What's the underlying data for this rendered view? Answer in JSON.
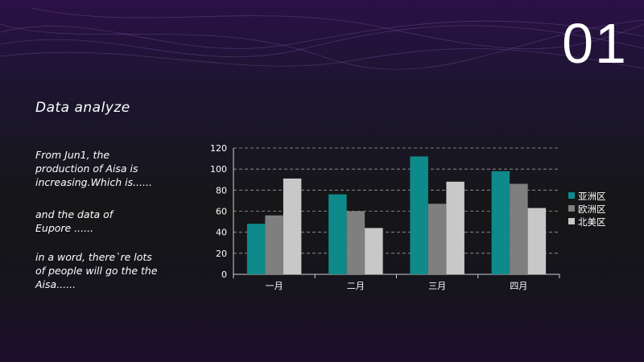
{
  "slide_number": "01",
  "heading": "Data analyze",
  "paragraphs": [
    "From Jun1, the\nproduction  of Aisa is\nincreasing.Which is......",
    "and the data of\nEupore ......",
    "in a word, there`re lots\nof people will go the the\nAisa......"
  ],
  "chart_data": {
    "type": "bar",
    "categories": [
      "一月",
      "二月",
      "三月",
      "四月"
    ],
    "series": [
      {
        "name": "亚洲区",
        "values": [
          48,
          76,
          112,
          98
        ],
        "color": "#0e8a8a"
      },
      {
        "name": "欧洲区",
        "values": [
          56,
          60,
          67,
          86
        ],
        "color": "#7f7f7f"
      },
      {
        "name": "北美区",
        "values": [
          91,
          44,
          88,
          63
        ],
        "color": "#c8c8c8"
      }
    ],
    "ylim": [
      0,
      120
    ],
    "yticks": [
      0,
      20,
      40,
      60,
      80,
      100,
      120
    ],
    "grid": true,
    "legend": "right"
  }
}
